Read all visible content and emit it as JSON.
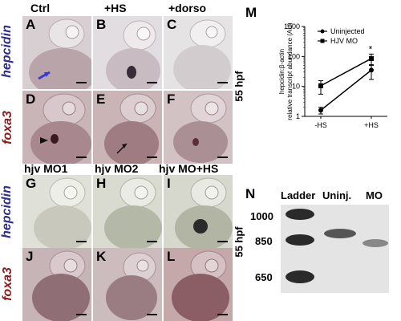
{
  "columns_top": [
    "Ctrl",
    "+HS",
    "+dorso"
  ],
  "columns_bottom": [
    "hjv MO1",
    "hjv MO2",
    "hjv MO+HS"
  ],
  "row_labels": [
    "hepcidin",
    "foxa3",
    "hepcidin",
    "foxa3"
  ],
  "stage": "55 hpf",
  "panels": [
    "A",
    "B",
    "C",
    "D",
    "E",
    "F",
    "G",
    "H",
    "I",
    "J",
    "K",
    "L"
  ],
  "fig_labels": {
    "m": "M",
    "n": "N"
  },
  "chart_data": {
    "type": "line",
    "categories": [
      "-HS",
      "+HS"
    ],
    "ylabel_line1": "hepcidin:β-actin",
    "ylabel_line2": "relative transcript abundance (AU)",
    "yscale": "log",
    "ylim": [
      1,
      1000
    ],
    "yticks": [
      1,
      10,
      100,
      1000
    ],
    "annotation": "*",
    "legend_position": "top-right",
    "series": [
      {
        "name": "Uninjected",
        "marker": "circle",
        "values": [
          1.6,
          35
        ],
        "err": [
          0.4,
          18
        ]
      },
      {
        "name": "HJV MO",
        "marker": "square",
        "values": [
          10.5,
          85
        ],
        "err": [
          5,
          35
        ]
      }
    ]
  },
  "gel": {
    "headers": [
      "Ladder",
      "Uninj.",
      "MO"
    ],
    "sizes": [
      "1000",
      "850",
      "650"
    ]
  },
  "colors": {
    "hepcidin": "#2e2e8c",
    "foxa3": "#8c1a1a"
  }
}
